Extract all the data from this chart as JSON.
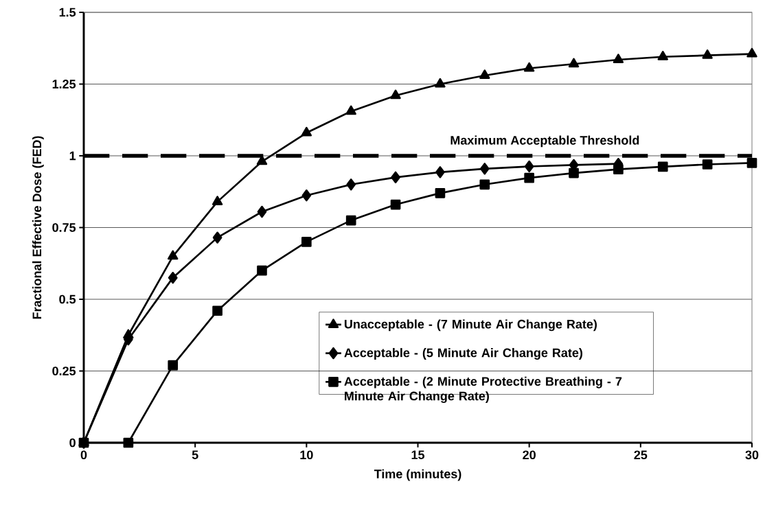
{
  "chart_data": {
    "type": "line",
    "xlabel": "Time (minutes)",
    "ylabel": "Fractional Effective Dose (FED)",
    "x": [
      0,
      2,
      4,
      6,
      8,
      10,
      12,
      14,
      16,
      18,
      20,
      22,
      24,
      26,
      28,
      30
    ],
    "series": [
      {
        "name": "Unacceptable - (7 Minute Air Change Rate)",
        "color": "#000000",
        "marker": "triangle",
        "values": [
          0,
          0.375,
          0.65,
          0.84,
          0.98,
          1.08,
          1.155,
          1.21,
          1.25,
          1.28,
          1.305,
          1.32,
          1.335,
          1.345,
          1.35,
          1.355
        ]
      },
      {
        "name": "Acceptable - (5 Minute Air Change Rate)",
        "color": "#000000",
        "marker": "diamond",
        "values": [
          0,
          0.36,
          0.575,
          0.715,
          0.805,
          0.862,
          0.9,
          0.925,
          0.943,
          0.955,
          0.963,
          0.968,
          0.972,
          null,
          null,
          null
        ]
      },
      {
        "name": "Acceptable - (2 Minute Protective Breathing - 7 Minute Air Change Rate)",
        "color": "#000000",
        "marker": "square",
        "values": [
          0,
          0,
          0.27,
          0.46,
          0.6,
          0.7,
          0.775,
          0.83,
          0.87,
          0.9,
          0.923,
          0.94,
          0.953,
          0.962,
          0.97,
          0.975
        ]
      }
    ],
    "xlim": [
      0,
      30
    ],
    "xticks": [
      0,
      5,
      10,
      15,
      20,
      25,
      30
    ],
    "ylim": [
      0,
      1.5
    ],
    "yticks": [
      0,
      0.25,
      0.5,
      0.75,
      1,
      1.25,
      1.5
    ],
    "ref_lines": [
      {
        "axis": "y",
        "value": 1,
        "label": "Maximum Acceptable Threshold",
        "color": "#000000",
        "line_style": "dashed"
      }
    ],
    "grid": "y",
    "legend": "bottom right",
    "line_style": "solid"
  }
}
